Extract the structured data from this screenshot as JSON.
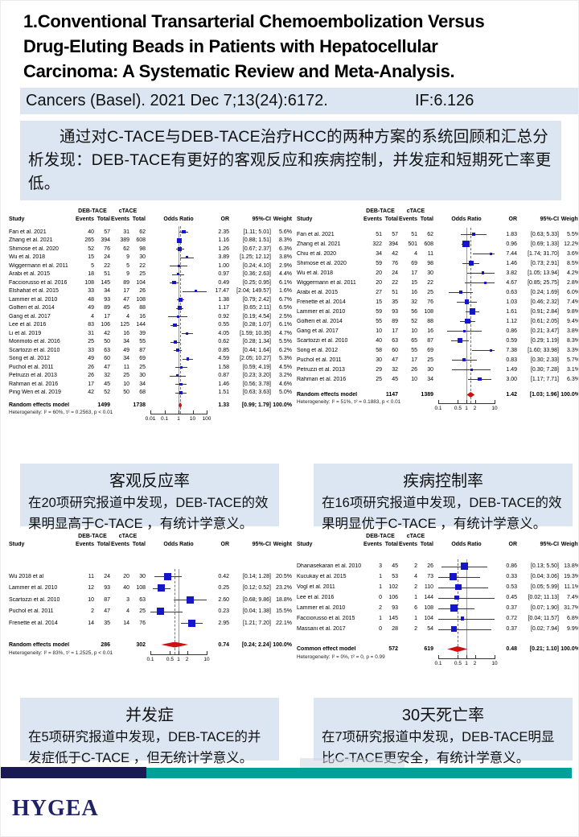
{
  "slide": {
    "title": "1.Conventional Transarterial Chemoembolization Versus\nDrug-Eluting Beads in Patients with Hepatocellular\nCarcinoma: A Systematic Review and Meta-Analysis.",
    "journal_citation": "Cancers (Basel). 2021 Dec 7;13(24):6172.",
    "impact_factor": "IF:6.126",
    "summary": "通过对C-TACE与DEB-TACE治疗HCC的两种方案的系统回顾和汇总分析发现：DEB-TACE有更好的客观反应和疾病控制，并发症和短期死亡率更低。",
    "logo_text": "HYGEA"
  },
  "colors": {
    "highlight_bg": "#dce6f2",
    "square_blue": "#1515cc",
    "diamond_red": "#cc1111",
    "navy": "#1a1a52",
    "teal": "#00a09a"
  },
  "info_boxes": [
    {
      "title": "客观反应率",
      "body": "在20项研究报道中发现，DEB-TACE的效果明显高于C-TACE ，有统计学意义。"
    },
    {
      "title": "疾病控制率",
      "body": "在16项研究报道中发现，DEB-TACE的效果明显优于C-TACE ，有统计学意义。"
    },
    {
      "title": "并发症",
      "body": "在5项研究报道中发现，DEB-TACE的并发症低于C-TACE ，但无统计学意义。"
    },
    {
      "title": "30天死亡率",
      "body": "在7项研究报道中发现，DEB-TACE明显比C-TACE更安全，有统计学意义。"
    }
  ],
  "chart_data": [
    {
      "type": "forest",
      "columns": [
        "Study",
        "Events",
        "Total",
        "Events",
        "Total",
        "Odds Ratio",
        "OR",
        "95%-CI",
        "Weight"
      ],
      "group_headers": [
        "DEB-TACE",
        "cTACE"
      ],
      "studies": [
        {
          "study": "Fan et al. 2021",
          "e1": 40,
          "t1": 57,
          "e2": 31,
          "t2": 62,
          "or": 2.35,
          "lo": 1.11,
          "hi": 5.01,
          "weight": "5.6%"
        },
        {
          "study": "Zhang et al. 2021",
          "e1": 265,
          "t1": 394,
          "e2": 389,
          "t2": 608,
          "or": 1.16,
          "lo": 0.88,
          "hi": 1.51,
          "weight": "8.3%"
        },
        {
          "study": "Shimose et al. 2020",
          "e1": 52,
          "t1": 76,
          "e2": 62,
          "t2": 98,
          "or": 1.26,
          "lo": 0.67,
          "hi": 2.37,
          "weight": "6.3%"
        },
        {
          "study": "Wu et al. 2018",
          "e1": 15,
          "t1": 24,
          "e2": 9,
          "t2": 30,
          "or": 3.89,
          "lo": 1.25,
          "hi": 12.12,
          "weight": "3.8%"
        },
        {
          "study": "Wiggermann et al. 2011",
          "e1": 5,
          "t1": 22,
          "e2": 5,
          "t2": 22,
          "or": 1.0,
          "lo": 0.24,
          "hi": 4.1,
          "weight": "2.9%"
        },
        {
          "study": "Arabi et al. 2015",
          "e1": 18,
          "t1": 51,
          "e2": 9,
          "t2": 25,
          "or": 0.97,
          "lo": 0.36,
          "hi": 2.63,
          "weight": "4.4%"
        },
        {
          "study": "Facciorusso et al. 2016",
          "e1": 108,
          "t1": 145,
          "e2": 89,
          "t2": 104,
          "or": 0.49,
          "lo": 0.25,
          "hi": 0.95,
          "weight": "6.1%"
        },
        {
          "study": "Elshahat et al. 2015",
          "e1": 33,
          "t1": 34,
          "e2": 17,
          "t2": 26,
          "or": 17.47,
          "lo": 2.04,
          "hi": 149.57,
          "weight": "1.6%"
        },
        {
          "study": "Lammer et al. 2010",
          "e1": 48,
          "t1": 93,
          "e2": 47,
          "t2": 108,
          "or": 1.38,
          "lo": 0.79,
          "hi": 2.42,
          "weight": "6.7%"
        },
        {
          "study": "Golfieri et al. 2014",
          "e1": 49,
          "t1": 89,
          "e2": 45,
          "t2": 88,
          "or": 1.17,
          "lo": 0.65,
          "hi": 2.11,
          "weight": "6.5%"
        },
        {
          "study": "Gang et al. 2017",
          "e1": 4,
          "t1": 17,
          "e2": 4,
          "t2": 16,
          "or": 0.92,
          "lo": 0.19,
          "hi": 4.54,
          "weight": "2.5%"
        },
        {
          "study": "Lee et al. 2016",
          "e1": 83,
          "t1": 106,
          "e2": 125,
          "t2": 144,
          "or": 0.55,
          "lo": 0.28,
          "hi": 1.07,
          "weight": "6.1%"
        },
        {
          "study": "Li et al. 2019",
          "e1": 31,
          "t1": 42,
          "e2": 16,
          "t2": 39,
          "or": 4.05,
          "lo": 1.59,
          "hi": 10.35,
          "weight": "4.7%"
        },
        {
          "study": "Morimoto et al. 2016",
          "e1": 25,
          "t1": 50,
          "e2": 34,
          "t2": 55,
          "or": 0.62,
          "lo": 0.28,
          "hi": 1.34,
          "weight": "5.5%"
        },
        {
          "study": "Scartozzi et al. 2010",
          "e1": 33,
          "t1": 63,
          "e2": 49,
          "t2": 87,
          "or": 0.85,
          "lo": 0.44,
          "hi": 1.64,
          "weight": "6.2%"
        },
        {
          "study": "Song et al. 2012",
          "e1": 49,
          "t1": 60,
          "e2": 34,
          "t2": 69,
          "or": 4.59,
          "lo": 2.05,
          "hi": 10.27,
          "weight": "5.3%"
        },
        {
          "study": "Puchol et al. 2011",
          "e1": 26,
          "t1": 47,
          "e2": 11,
          "t2": 25,
          "or": 1.58,
          "lo": 0.59,
          "hi": 4.19,
          "weight": "4.5%"
        },
        {
          "study": "Petruzzi et al. 2013",
          "e1": 26,
          "t1": 32,
          "e2": 25,
          "t2": 30,
          "or": 0.87,
          "lo": 0.23,
          "hi": 3.2,
          "weight": "3.2%"
        },
        {
          "study": "Rahman et al. 2016",
          "e1": 17,
          "t1": 45,
          "e2": 10,
          "t2": 34,
          "or": 1.46,
          "lo": 0.56,
          "hi": 3.78,
          "weight": "4.6%"
        },
        {
          "study": "Ping Wen et al. 2019",
          "e1": 42,
          "t1": 52,
          "e2": 50,
          "t2": 68,
          "or": 1.51,
          "lo": 0.63,
          "hi": 3.63,
          "weight": "5.0%"
        }
      ],
      "summary": {
        "label": "Random effects model",
        "t1": 1499,
        "t2": 1738,
        "or": 1.33,
        "lo": 0.99,
        "hi": 1.79,
        "weight": "100.0%"
      },
      "heterogeneity": "Heterogeneity: I² = 60%, τ² = 0.2563, p < 0.01",
      "xlim": [
        0.01,
        100
      ],
      "ticks": [
        0.01,
        0.1,
        1,
        10,
        100
      ],
      "tick_labels": [
        "0.01",
        "0.1",
        "1",
        "10",
        "100"
      ]
    },
    {
      "type": "forest",
      "columns": [
        "Study",
        "Events",
        "Total",
        "Events",
        "Total",
        "Odds Ratio",
        "OR",
        "95%-CI",
        "Weight"
      ],
      "group_headers": [
        "DEB-TACE",
        "cTACE"
      ],
      "studies": [
        {
          "study": "Fan et al. 2021",
          "e1": 51,
          "t1": 57,
          "e2": 51,
          "t2": 62,
          "or": 1.83,
          "lo": 0.63,
          "hi": 5.33,
          "weight": "5.5%"
        },
        {
          "study": "Zhang et al. 2021",
          "e1": 322,
          "t1": 394,
          "e2": 501,
          "t2": 608,
          "or": 0.96,
          "lo": 0.69,
          "hi": 1.33,
          "weight": "12.2%"
        },
        {
          "study": "Chiu et al. 2020",
          "e1": 34,
          "t1": 42,
          "e2": 4,
          "t2": 11,
          "or": 7.44,
          "lo": 1.74,
          "hi": 31.7,
          "weight": "3.6%"
        },
        {
          "study": "Shimose et al. 2020",
          "e1": 59,
          "t1": 76,
          "e2": 69,
          "t2": 98,
          "or": 1.46,
          "lo": 0.73,
          "hi": 2.91,
          "weight": "8.5%"
        },
        {
          "study": "Wu et al. 2018",
          "e1": 20,
          "t1": 24,
          "e2": 17,
          "t2": 30,
          "or": 3.82,
          "lo": 1.05,
          "hi": 13.94,
          "weight": "4.2%"
        },
        {
          "study": "Wiggermann et al. 2011",
          "e1": 20,
          "t1": 22,
          "e2": 15,
          "t2": 22,
          "or": 4.67,
          "lo": 0.85,
          "hi": 25.75,
          "weight": "2.8%"
        },
        {
          "study": "Arabi et al. 2015",
          "e1": 27,
          "t1": 51,
          "e2": 16,
          "t2": 25,
          "or": 0.63,
          "lo": 0.24,
          "hi": 1.69,
          "weight": "6.0%"
        },
        {
          "study": "Frenette et al. 2014",
          "e1": 15,
          "t1": 35,
          "e2": 32,
          "t2": 76,
          "or": 1.03,
          "lo": 0.46,
          "hi": 2.32,
          "weight": "7.4%"
        },
        {
          "study": "Lammer et al. 2010",
          "e1": 59,
          "t1": 93,
          "e2": 56,
          "t2": 108,
          "or": 1.61,
          "lo": 0.91,
          "hi": 2.84,
          "weight": "9.8%"
        },
        {
          "study": "Golfieri et al. 2014",
          "e1": 55,
          "t1": 89,
          "e2": 52,
          "t2": 88,
          "or": 1.12,
          "lo": 0.61,
          "hi": 2.05,
          "weight": "9.4%"
        },
        {
          "study": "Gang et al. 2017",
          "e1": 10,
          "t1": 17,
          "e2": 10,
          "t2": 16,
          "or": 0.86,
          "lo": 0.21,
          "hi": 3.47,
          "weight": "3.8%"
        },
        {
          "study": "Scartozzi et al. 2010",
          "e1": 40,
          "t1": 63,
          "e2": 65,
          "t2": 87,
          "or": 0.59,
          "lo": 0.29,
          "hi": 1.19,
          "weight": "8.3%"
        },
        {
          "study": "Song et al. 2012",
          "e1": 58,
          "t1": 60,
          "e2": 55,
          "t2": 69,
          "or": 7.38,
          "lo": 1.6,
          "hi": 33.98,
          "weight": "3.3%"
        },
        {
          "study": "Puchol et al. 2011",
          "e1": 30,
          "t1": 47,
          "e2": 17,
          "t2": 25,
          "or": 0.83,
          "lo": 0.3,
          "hi": 2.33,
          "weight": "5.7%"
        },
        {
          "study": "Petruzzi et al. 2013",
          "e1": 29,
          "t1": 32,
          "e2": 26,
          "t2": 30,
          "or": 1.49,
          "lo": 0.3,
          "hi": 7.28,
          "weight": "3.1%"
        },
        {
          "study": "Rahman et al. 2016",
          "e1": 25,
          "t1": 45,
          "e2": 10,
          "t2": 34,
          "or": 3.0,
          "lo": 1.17,
          "hi": 7.71,
          "weight": "6.3%"
        }
      ],
      "summary": {
        "label": "Random effects model",
        "t1": 1147,
        "t2": 1389,
        "or": 1.42,
        "lo": 1.03,
        "hi": 1.96,
        "weight": "100.0%"
      },
      "heterogeneity": "Heterogeneity: I² = 51%, τ² = 0.1883, p < 0.01",
      "xlim": [
        0.1,
        10
      ],
      "ticks": [
        0.1,
        0.5,
        1,
        2,
        10
      ],
      "tick_labels": [
        "0.1",
        "0.5",
        "1",
        "2",
        "10"
      ]
    },
    {
      "type": "forest",
      "columns": [
        "Study",
        "Events",
        "Total",
        "Events",
        "Total",
        "Odds Ratio",
        "OR",
        "95%-CI",
        "Weight"
      ],
      "group_headers": [
        "DEB-TACE",
        "cTACE"
      ],
      "studies": [
        {
          "study": "Wu 2018 et al",
          "e1": 11,
          "t1": 24,
          "e2": 20,
          "t2": 30,
          "or": 0.42,
          "lo": 0.14,
          "hi": 1.28,
          "weight": "20.5%"
        },
        {
          "study": "Lammer et al. 2010",
          "e1": 12,
          "t1": 93,
          "e2": 40,
          "t2": 108,
          "or": 0.25,
          "lo": 0.12,
          "hi": 0.52,
          "weight": "23.2%"
        },
        {
          "study": "Scartozzi et al. 2010",
          "e1": 10,
          "t1": 87,
          "e2": 3,
          "t2": 63,
          "or": 2.6,
          "lo": 0.68,
          "hi": 9.86,
          "weight": "18.8%"
        },
        {
          "study": "Puchol et al. 2011",
          "e1": 2,
          "t1": 47,
          "e2": 4,
          "t2": 25,
          "or": 0.23,
          "lo": 0.04,
          "hi": 1.38,
          "weight": "15.5%"
        },
        {
          "study": "Frenette et al. 2014",
          "e1": 14,
          "t1": 35,
          "e2": 14,
          "t2": 76,
          "or": 2.95,
          "lo": 1.21,
          "hi": 7.2,
          "weight": "22.1%"
        }
      ],
      "summary": {
        "label": "Random effects model",
        "t1": 286,
        "t2": 302,
        "or": 0.74,
        "lo": 0.24,
        "hi": 2.24,
        "weight": "100.0%"
      },
      "heterogeneity": "Heterogeneity: I² = 83%, τ² = 1.2525, p < 0.01",
      "xlim": [
        0.1,
        10
      ],
      "ticks": [
        0.1,
        0.5,
        1,
        2,
        10
      ],
      "tick_labels": [
        "0.1",
        "0.5",
        "1",
        "2",
        "10"
      ]
    },
    {
      "type": "forest",
      "columns": [
        "Study",
        "Events",
        "Total",
        "Events",
        "Total",
        "Odds Ratio",
        "OR",
        "95%-CI",
        "Weight"
      ],
      "group_headers": [
        "DEB-TACE",
        "cTACE"
      ],
      "studies": [
        {
          "study": "Dhanasekaran et al. 2010",
          "e1": 3,
          "t1": 45,
          "e2": 2,
          "t2": 26,
          "or": 0.86,
          "lo": 0.13,
          "hi": 5.5,
          "weight": "13.8%"
        },
        {
          "study": "Kucukay et al. 2015",
          "e1": 1,
          "t1": 53,
          "e2": 4,
          "t2": 73,
          "or": 0.33,
          "lo": 0.04,
          "hi": 3.06,
          "weight": "19.3%"
        },
        {
          "study": "Vogl et al. 2011",
          "e1": 1,
          "t1": 102,
          "e2": 2,
          "t2": 110,
          "or": 0.53,
          "lo": 0.05,
          "hi": 5.99,
          "weight": "11.1%"
        },
        {
          "study": "Lee et al. 2016",
          "e1": 0,
          "t1": 106,
          "e2": 1,
          "t2": 144,
          "or": 0.45,
          "lo": 0.02,
          "hi": 11.13,
          "weight": "7.4%"
        },
        {
          "study": "Lammer et al. 2010",
          "e1": 2,
          "t1": 93,
          "e2": 6,
          "t2": 108,
          "or": 0.37,
          "lo": 0.07,
          "hi": 1.9,
          "weight": "31.7%"
        },
        {
          "study": "Facciorusso et al. 2015",
          "e1": 1,
          "t1": 145,
          "e2": 1,
          "t2": 104,
          "or": 0.72,
          "lo": 0.04,
          "hi": 11.57,
          "weight": "6.8%"
        },
        {
          "study": "Massani et al. 2017",
          "e1": 0,
          "t1": 28,
          "e2": 2,
          "t2": 54,
          "or": 0.37,
          "lo": 0.02,
          "hi": 7.94,
          "weight": "9.9%"
        }
      ],
      "summary": {
        "label": "Common effect model",
        "t1": 572,
        "t2": 619,
        "or": 0.48,
        "lo": 0.21,
        "hi": 1.1,
        "weight": "100.0%"
      },
      "heterogeneity": "Heterogeneity: I² = 0%, τ² = 0, p = 0.99",
      "xlim": [
        0.1,
        10
      ],
      "ticks": [
        0.1,
        0.5,
        1,
        2,
        10
      ],
      "tick_labels": [
        "0.1",
        "0.5",
        "1",
        "2",
        "10"
      ]
    }
  ]
}
